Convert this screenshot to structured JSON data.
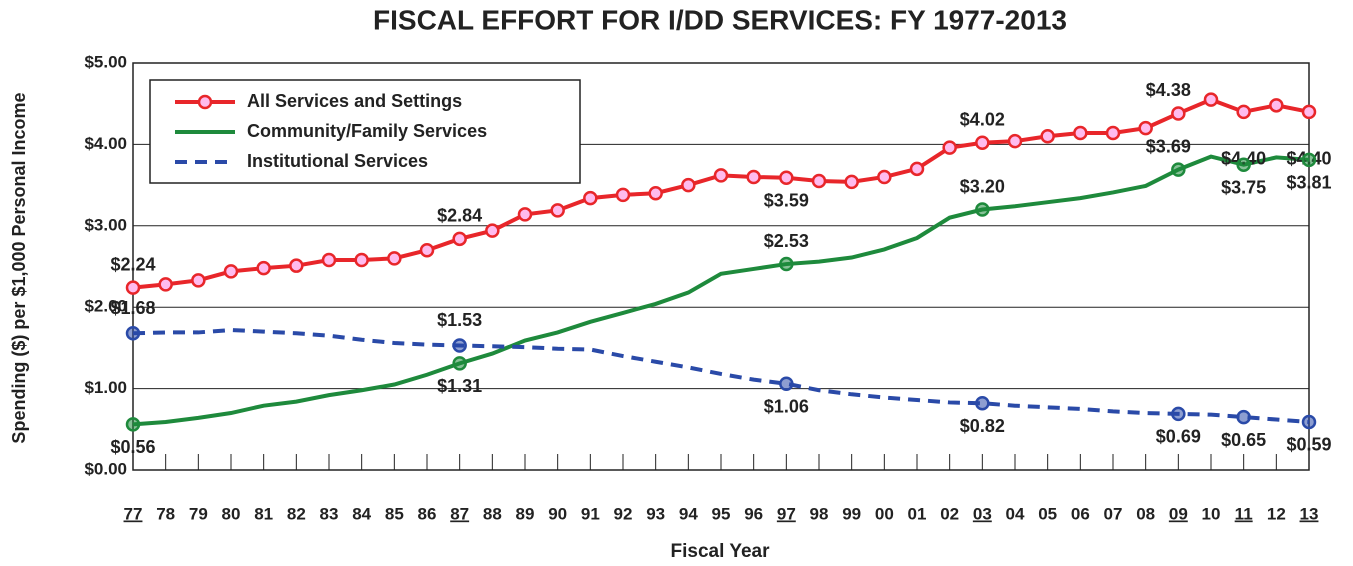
{
  "chart_data": {
    "type": "line",
    "title": "FISCAL EFFORT FOR I/DD SERVICES: FY 1977-2013",
    "y_label": "Spending ($) per $1,000 Personal Income",
    "x_label": "Fiscal Year",
    "categories": [
      "77",
      "78",
      "79",
      "80",
      "81",
      "82",
      "83",
      "84",
      "85",
      "86",
      "87",
      "88",
      "89",
      "90",
      "91",
      "92",
      "93",
      "94",
      "95",
      "96",
      "97",
      "98",
      "99",
      "00",
      "01",
      "02",
      "03",
      "04",
      "05",
      "06",
      "07",
      "08",
      "09",
      "10",
      "11",
      "12",
      "13"
    ],
    "underlined_categories": [
      0,
      10,
      20,
      26,
      32,
      34,
      36
    ],
    "ylim": [
      0,
      5
    ],
    "yticks": [
      {
        "value": 0,
        "label": "$0.00"
      },
      {
        "value": 1,
        "label": "$1.00"
      },
      {
        "value": 2,
        "label": "$2.00"
      },
      {
        "value": 3,
        "label": "$3.00"
      },
      {
        "value": 4,
        "label": "$4.00"
      },
      {
        "value": 5,
        "label": "$5.00"
      }
    ],
    "grid": true,
    "legend": "upper left",
    "series": [
      {
        "name": "All Services and Settings",
        "color": "#e8262a",
        "dash": false,
        "markers": "all",
        "values": [
          2.24,
          2.28,
          2.33,
          2.44,
          2.48,
          2.51,
          2.58,
          2.58,
          2.6,
          2.7,
          2.84,
          2.94,
          3.14,
          3.19,
          3.34,
          3.38,
          3.4,
          3.5,
          3.62,
          3.6,
          3.59,
          3.55,
          3.54,
          3.6,
          3.7,
          3.96,
          4.02,
          4.04,
          4.1,
          4.14,
          4.14,
          4.2,
          4.38,
          4.55,
          4.4,
          4.48,
          4.4
        ],
        "value_labels": [
          "$2.24",
          null,
          null,
          null,
          null,
          null,
          null,
          null,
          null,
          null,
          "$2.84",
          null,
          null,
          null,
          null,
          null,
          null,
          null,
          null,
          null,
          "$3.59",
          null,
          null,
          null,
          null,
          null,
          "$4.02",
          null,
          null,
          null,
          null,
          null,
          "$4.38",
          null,
          "$4.40",
          null,
          "$4.40"
        ]
      },
      {
        "name": "Community/Family Services",
        "color": "#1e8a3c",
        "dash": false,
        "markers": "labelled",
        "values": [
          0.56,
          0.59,
          0.64,
          0.7,
          0.79,
          0.84,
          0.92,
          0.98,
          1.05,
          1.17,
          1.31,
          1.43,
          1.59,
          1.69,
          1.82,
          1.93,
          2.04,
          2.18,
          2.41,
          2.47,
          2.53,
          2.56,
          2.61,
          2.71,
          2.85,
          3.1,
          3.2,
          3.24,
          3.29,
          3.34,
          3.41,
          3.49,
          3.69,
          3.85,
          3.75,
          3.84,
          3.81
        ],
        "value_labels": [
          "$0.56",
          null,
          null,
          null,
          null,
          null,
          null,
          null,
          null,
          null,
          "$1.31",
          null,
          null,
          null,
          null,
          null,
          null,
          null,
          null,
          null,
          "$2.53",
          null,
          null,
          null,
          null,
          null,
          "$3.20",
          null,
          null,
          null,
          null,
          null,
          "$3.69",
          null,
          "$3.75",
          null,
          "$3.81"
        ]
      },
      {
        "name": "Institutional Services",
        "color": "#2a4aa8",
        "dash": true,
        "markers": "labelled",
        "values": [
          1.68,
          1.69,
          1.69,
          1.72,
          1.7,
          1.68,
          1.65,
          1.6,
          1.56,
          1.54,
          1.53,
          1.52,
          1.51,
          1.49,
          1.48,
          1.4,
          1.33,
          1.26,
          1.18,
          1.11,
          1.06,
          0.98,
          0.93,
          0.89,
          0.86,
          0.83,
          0.82,
          0.79,
          0.77,
          0.75,
          0.72,
          0.7,
          0.69,
          0.68,
          0.65,
          0.62,
          0.59
        ],
        "value_labels": [
          "$1.68",
          null,
          null,
          null,
          null,
          null,
          null,
          null,
          null,
          null,
          "$1.53",
          null,
          null,
          null,
          null,
          null,
          null,
          null,
          null,
          null,
          "$1.06",
          null,
          null,
          null,
          null,
          null,
          "$0.82",
          null,
          null,
          null,
          null,
          null,
          "$0.69",
          null,
          "$0.65",
          null,
          "$0.59"
        ]
      }
    ]
  }
}
